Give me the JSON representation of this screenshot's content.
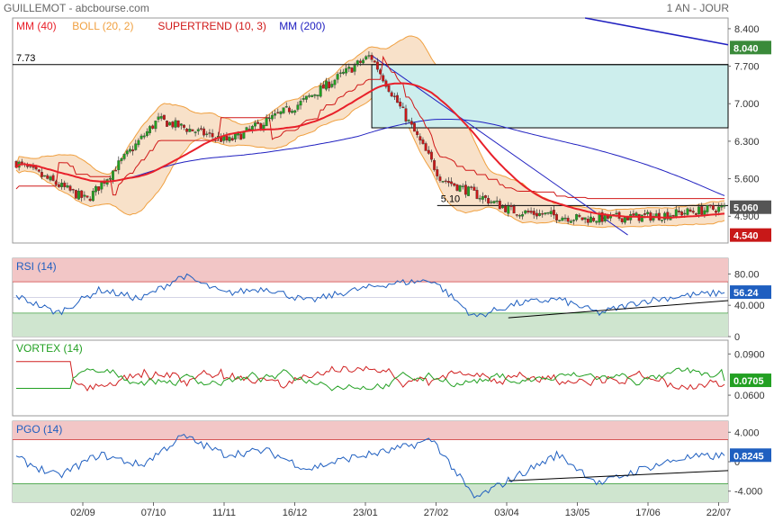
{
  "header": {
    "title": "GUILLEMOT - abcbourse.com",
    "period": "1 AN - JOUR"
  },
  "colors": {
    "ma40": "#e8202a",
    "boll": "#f0a040",
    "bollFill": "#f7dcc0",
    "supertrend": "#d01818",
    "ma200": "#2020c0",
    "rsi": "#1f5fc0",
    "vortexPlus": "#22a022",
    "vortexMinus": "#d02020",
    "pgo": "#1f5fc0",
    "zoneCyan": "#cdeeed",
    "zoneRed": "#f2c6c6",
    "zoneGreen": "#cfe5cf"
  },
  "chart_data": [
    {
      "type": "candlestick",
      "title": "",
      "legend": [
        {
          "name": "MM (40)",
          "color": "#e8202a"
        },
        {
          "name": "BOLL (20, 2)",
          "color": "#f0a040"
        },
        {
          "name": "SUPERTREND (10, 3)",
          "color": "#d01818"
        },
        {
          "name": "MM (200)",
          "color": "#2020c0"
        }
      ],
      "yticks": [
        "8.400",
        "7.700",
        "7.000",
        "6.300",
        "5.600",
        "4.900"
      ],
      "ylim": [
        4.4,
        8.6
      ],
      "xticks": [
        "02/09",
        "07/10",
        "11/11",
        "16/12",
        "23/01",
        "27/02",
        "03/04",
        "13/05",
        "17/06",
        "22/07"
      ],
      "badges": [
        {
          "label": "8.040",
          "value": 8.04,
          "color": "#3a8a3a"
        },
        {
          "label": "5.060",
          "value": 5.06,
          "color": "#555555"
        },
        {
          "label": "4.540",
          "value": 4.54,
          "color": "#c81818"
        }
      ],
      "hlines": [
        {
          "label": "7.73",
          "value": 7.73
        },
        {
          "label": "5.10",
          "value": 5.1
        }
      ],
      "keyPoints": [
        {
          "date": "start",
          "close": 5.9
        },
        {
          "date": "02/09",
          "close": 5.2
        },
        {
          "date": "07/10",
          "close": 6.7
        },
        {
          "date": "11/11",
          "close": 6.3
        },
        {
          "date": "16/12",
          "close": 7.0
        },
        {
          "date": "23/01",
          "close": 7.9
        },
        {
          "date": "27/02",
          "close": 5.6
        },
        {
          "date": "03/04",
          "close": 5.0
        },
        {
          "date": "13/05",
          "close": 4.85
        },
        {
          "date": "17/06",
          "close": 4.9
        },
        {
          "date": "22/07",
          "close": 5.06
        }
      ]
    },
    {
      "type": "line",
      "title": "RSI (14)",
      "yticks": [
        "80.00",
        "40.000",
        "0"
      ],
      "ylim": [
        0,
        100
      ],
      "zones": [
        70,
        30
      ],
      "lastLabel": "56.24",
      "last": 56.24,
      "keyPoints": [
        52,
        30,
        60,
        48,
        78,
        55,
        62,
        45,
        58,
        68,
        72,
        25,
        42,
        48,
        30,
        45,
        52,
        56.24
      ]
    },
    {
      "type": "line",
      "title": "VORTEX (14)",
      "yticks": [
        "0.0900",
        "0.0600"
      ],
      "ylim": [
        0.045,
        0.1
      ],
      "lastLabel": "0.0705",
      "last": 0.0705
    },
    {
      "type": "line",
      "title": "PGO (14)",
      "yticks": [
        "4.000",
        "0",
        "-4.000"
      ],
      "ylim": [
        -5.5,
        5.5
      ],
      "zones": [
        3,
        -3
      ],
      "lastLabel": "0.8245",
      "last": 0.8245,
      "keyPoints": [
        0.5,
        -2,
        1,
        -0.5,
        3.5,
        1,
        1.5,
        -1,
        0.5,
        1.5,
        3,
        -5,
        -2,
        1,
        -3,
        -1,
        0.5,
        0.8245
      ]
    }
  ]
}
